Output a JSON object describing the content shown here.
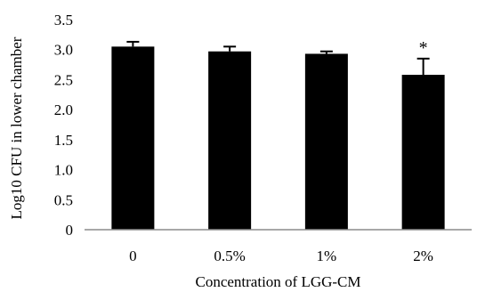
{
  "chart_data": {
    "type": "bar",
    "title": "",
    "xlabel": "Concentration of LGG-CM",
    "ylabel": "Log10 CFU in lower chamber",
    "categories": [
      "0",
      "0.5%",
      "1%",
      "2%"
    ],
    "values": [
      3.05,
      2.97,
      2.93,
      2.58
    ],
    "error_bars": [
      0.08,
      0.08,
      0.04,
      0.27
    ],
    "annotations": [
      "",
      "",
      "",
      "*"
    ],
    "ylim": [
      0,
      3.5
    ],
    "yticks": [
      "0",
      "0.5",
      "1.0",
      "1.5",
      "2.0",
      "2.5",
      "3.0",
      "3.5"
    ],
    "grid": false,
    "legend": "none",
    "bar_color": "#000000",
    "axis_color": "#8c8c8c"
  }
}
